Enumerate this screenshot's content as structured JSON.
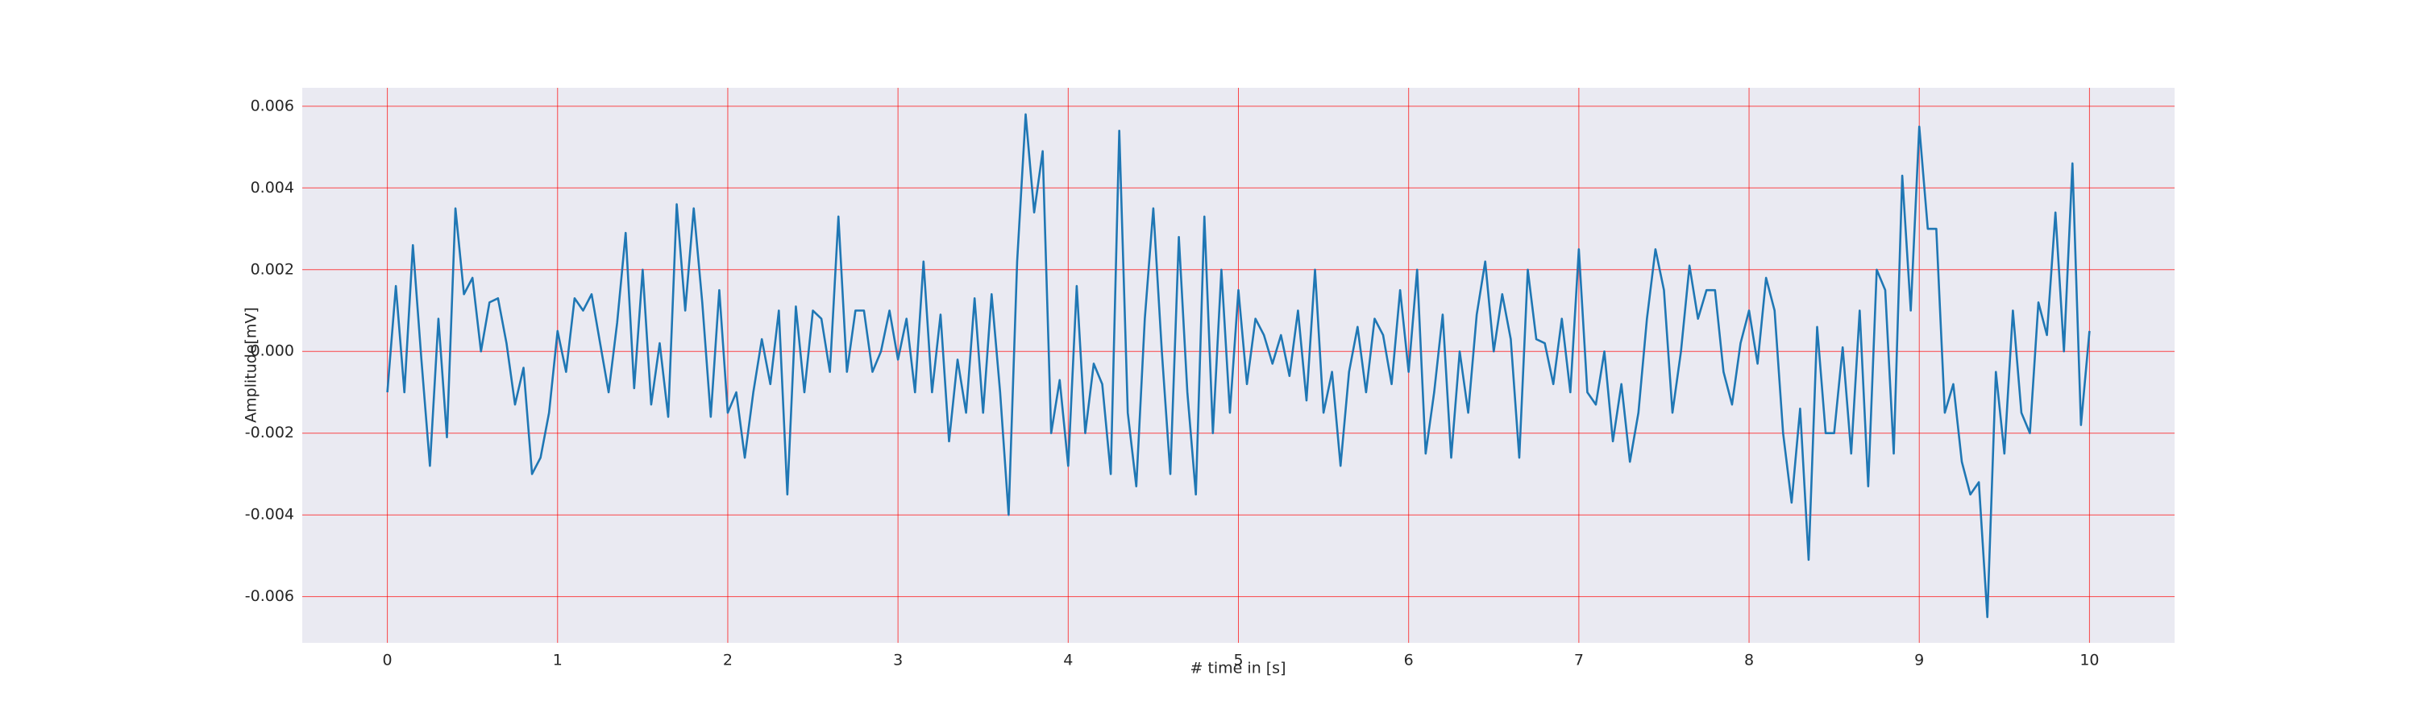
{
  "chart_data": {
    "type": "line",
    "xlabel": "# time in [s]",
    "ylabel": "Amplitude[mV]",
    "xlim": [
      -0.5,
      10.5
    ],
    "ylim": [
      -0.00713,
      0.00645
    ],
    "xticks": [
      0,
      1,
      2,
      3,
      4,
      5,
      6,
      7,
      8,
      9,
      10
    ],
    "yticks": [
      -0.006,
      -0.004,
      -0.002,
      {
        "value": 0,
        "label": "0.000"
      },
      0.002,
      0.004,
      0.006
    ],
    "grid": true,
    "grid_color": "#ff0000",
    "background": "#eaeaf2",
    "x": [
      0,
      0.05,
      0.1,
      0.15,
      0.2,
      0.25,
      0.3,
      0.35,
      0.4,
      0.45,
      0.5,
      0.55,
      0.6,
      0.65,
      0.7,
      0.75,
      0.8,
      0.85,
      0.9,
      0.95,
      1,
      1.05,
      1.1,
      1.15,
      1.2,
      1.25,
      1.3,
      1.35,
      1.4,
      1.45,
      1.5,
      1.55,
      1.6,
      1.65,
      1.7,
      1.75,
      1.8,
      1.85,
      1.9,
      1.95,
      2,
      2.05,
      2.1,
      2.15,
      2.2,
      2.25,
      2.3,
      2.35,
      2.4,
      2.45,
      2.5,
      2.55,
      2.6,
      2.65,
      2.7,
      2.75,
      2.8,
      2.85,
      2.9,
      2.95,
      3,
      3.05,
      3.1,
      3.15,
      3.2,
      3.25,
      3.3,
      3.35,
      3.4,
      3.45,
      3.5,
      3.55,
      3.6,
      3.65,
      3.7,
      3.75,
      3.8,
      3.85,
      3.9,
      3.95,
      4,
      4.05,
      4.1,
      4.15,
      4.2,
      4.25,
      4.3,
      4.35,
      4.4,
      4.45,
      4.5,
      4.55,
      4.6,
      4.65,
      4.7,
      4.75,
      4.8,
      4.85,
      4.9,
      4.95,
      5,
      5.05,
      5.1,
      5.15,
      5.2,
      5.25,
      5.3,
      5.35,
      5.4,
      5.45,
      5.5,
      5.55,
      5.6,
      5.65,
      5.7,
      5.75,
      5.8,
      5.85,
      5.9,
      5.95,
      6,
      6.05,
      6.1,
      6.15,
      6.2,
      6.25,
      6.3,
      6.35,
      6.4,
      6.45,
      6.5,
      6.55,
      6.6,
      6.65,
      6.7,
      6.75,
      6.8,
      6.85,
      6.9,
      6.95,
      7,
      7.05,
      7.1,
      7.15,
      7.2,
      7.25,
      7.3,
      7.35,
      7.4,
      7.45,
      7.5,
      7.55,
      7.6,
      7.65,
      7.7,
      7.75,
      7.8,
      7.85,
      7.9,
      7.95,
      8,
      8.05,
      8.1,
      8.15,
      8.2,
      8.25,
      8.3,
      8.35,
      8.4,
      8.45,
      8.5,
      8.55,
      8.6,
      8.65,
      8.7,
      8.75,
      8.8,
      8.85,
      8.9,
      8.95,
      9,
      9.05,
      9.1,
      9.15,
      9.2,
      9.25,
      9.3,
      9.35,
      9.4,
      9.45,
      9.5,
      9.55,
      9.6,
      9.65,
      9.7,
      9.75,
      9.8,
      9.85,
      9.9,
      9.95,
      10
    ],
    "series": [
      {
        "color": "#1f77b4",
        "values": [
          -0.001,
          0.0016,
          -0.001,
          0.0026,
          -0.0002,
          -0.0028,
          0.0008,
          -0.0021,
          0.0035,
          0.0014,
          0.0018,
          0,
          0.0012,
          0.0013,
          0.0002,
          -0.0013,
          -0.0004,
          -0.003,
          -0.0026,
          -0.0015,
          0.0005,
          -0.0005,
          0.0013,
          0.001,
          0.0014,
          0.0002,
          -0.001,
          0.0007,
          0.0029,
          -0.0009,
          0.002,
          -0.0013,
          0.0002,
          -0.0016,
          0.0036,
          0.001,
          0.0035,
          0.0012,
          -0.0016,
          0.0015,
          -0.0015,
          -0.001,
          -0.0026,
          -0.001,
          0.0003,
          -0.0008,
          0.001,
          -0.0035,
          0.0011,
          -0.001,
          0.001,
          0.0008,
          -0.0005,
          0.0033,
          -0.0005,
          0.001,
          0.001,
          -0.0005,
          0,
          0.001,
          -0.0002,
          0.0008,
          -0.001,
          0.0022,
          -0.001,
          0.0009,
          -0.0022,
          -0.0002,
          -0.0015,
          0.0013,
          -0.0015,
          0.0014,
          -0.001,
          -0.004,
          0.0022,
          0.0058,
          0.0034,
          0.0049,
          -0.002,
          -0.0007,
          -0.0028,
          0.0016,
          -0.002,
          -0.0003,
          -0.0008,
          -0.003,
          0.0054,
          -0.0015,
          -0.0033,
          0.0008,
          0.0035,
          0,
          -0.003,
          0.0028,
          -0.001,
          -0.0035,
          0.0033,
          -0.002,
          0.002,
          -0.0015,
          0.0015,
          -0.0008,
          0.0008,
          0.0004,
          -0.0003,
          0.0004,
          -0.0006,
          0.001,
          -0.0012,
          0.002,
          -0.0015,
          -0.0005,
          -0.0028,
          -0.0005,
          0.0006,
          -0.001,
          0.0008,
          0.0004,
          -0.0008,
          0.0015,
          -0.0005,
          0.002,
          -0.0025,
          -0.001,
          0.0009,
          -0.0026,
          0,
          -0.0015,
          0.0009,
          0.0022,
          0,
          0.0014,
          0.0003,
          -0.0026,
          0.002,
          0.0003,
          0.0002,
          -0.0008,
          0.0008,
          -0.001,
          0.0025,
          -0.001,
          -0.0013,
          0,
          -0.0022,
          -0.0008,
          -0.0027,
          -0.0015,
          0.0008,
          0.0025,
          0.0015,
          -0.0015,
          0,
          0.0021,
          0.0008,
          0.0015,
          0.0015,
          -0.0005,
          -0.0013,
          0.0002,
          0.001,
          -0.0003,
          0.0018,
          0.001,
          -0.002,
          -0.0037,
          -0.0014,
          -0.0051,
          0.0006,
          -0.002,
          -0.002,
          0.0001,
          -0.0025,
          0.001,
          -0.0033,
          0.002,
          0.0015,
          -0.0025,
          0.0043,
          0.001,
          0.0055,
          0.003,
          0.003,
          -0.0015,
          -0.0008,
          -0.0027,
          -0.0035,
          -0.0032,
          -0.0065,
          -0.0005,
          -0.0025,
          0.001,
          -0.0015,
          -0.002,
          0.0012,
          0.0004,
          0.0034,
          0,
          0.0046,
          -0.0018,
          0.0005
        ]
      }
    ]
  }
}
